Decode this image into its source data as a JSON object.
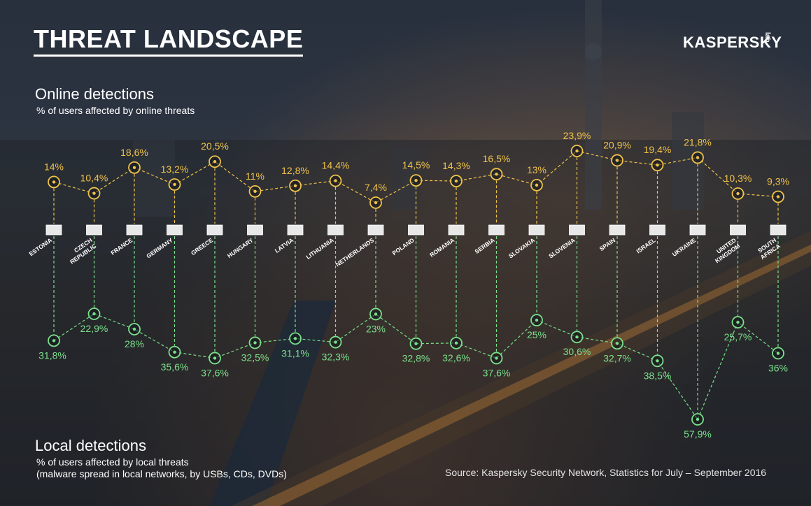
{
  "title": "THREAT LANDSCAPE",
  "logo": {
    "text": "KASPERSKY",
    "suffix": "lab"
  },
  "online": {
    "title": "Online detections",
    "subtitle": "% of users affected by online threats"
  },
  "local": {
    "title": "Local detections",
    "subtitle_line1": "% of users affected by local threats",
    "subtitle_line2": "(malware spread in local networks, by USBs, CDs, DVDs)"
  },
  "source": "Source: Kaspersky Security Network, Statistics for July – September 2016",
  "colors": {
    "online": "#f0c24a",
    "local": "#7be08a",
    "text": "#ffffff"
  },
  "chart_data": {
    "type": "line",
    "categories": [
      "ESTONIA",
      "CZECH REPUBLIC",
      "FRANCE",
      "GERMANY",
      "GREECE",
      "HUNGARY",
      "LATVIA",
      "LITHUANIA",
      "NETHERLANDS",
      "POLAND",
      "ROMANIA",
      "SERBIA",
      "SLOVAKIA",
      "SLOVENIA",
      "SPAIN",
      "ISRAEL",
      "UKRAINE",
      "UNITED KINGDOM",
      "SOUTH AFRICA"
    ],
    "country_lines": [
      [
        "ESTONIA"
      ],
      [
        "CZECH",
        "REPUBLIC"
      ],
      [
        "FRANCE"
      ],
      [
        "GERMANY"
      ],
      [
        "GREECE"
      ],
      [
        "HUNGARY"
      ],
      [
        "LATVIA"
      ],
      [
        "LITHUANIA"
      ],
      [
        "NETHERLANDS"
      ],
      [
        "POLAND"
      ],
      [
        "ROMANIA"
      ],
      [
        "SERBIA"
      ],
      [
        "SLOVAKIA"
      ],
      [
        "SLOVENIA"
      ],
      [
        "SPAIN"
      ],
      [
        "ISRAEL"
      ],
      [
        "UKRAINE"
      ],
      [
        "UNITED",
        "KINGDOM"
      ],
      [
        "SOUTH",
        "AFRICA"
      ]
    ],
    "series": [
      {
        "values": [
          14,
          10.4,
          18.6,
          13.2,
          20.5,
          11,
          12.8,
          14.4,
          7.4,
          14.5,
          14.3,
          16.5,
          13,
          23.9,
          20.9,
          19.4,
          21.8,
          10.3,
          9.3
        ],
        "labels": [
          "14%",
          "10,4%",
          "18,6%",
          "13,2%",
          "20,5%",
          "11%",
          "12,8%",
          "14,4%",
          "7,4%",
          "14,5%",
          "14,3%",
          "16,5%",
          "13%",
          "23,9%",
          "20,9%",
          "19,4%",
          "21,8%",
          "10,3%",
          "9,3%"
        ]
      },
      {
        "values": [
          31.8,
          22.9,
          28,
          35.6,
          37.6,
          32.5,
          31.1,
          32.3,
          23,
          32.8,
          32.6,
          37.6,
          25,
          30.6,
          32.7,
          38.5,
          57.9,
          25.7,
          36
        ],
        "labels": [
          "31,8%",
          "22,9%",
          "28%",
          "35,6%",
          "37,6%",
          "32,5%",
          "31,1%",
          "32,3%",
          "23%",
          "32,8%",
          "32,6%",
          "37,6%",
          "25%",
          "30,6%",
          "32,7%",
          "38,5%",
          "57,9%",
          "25,7%",
          "36%"
        ]
      }
    ]
  }
}
